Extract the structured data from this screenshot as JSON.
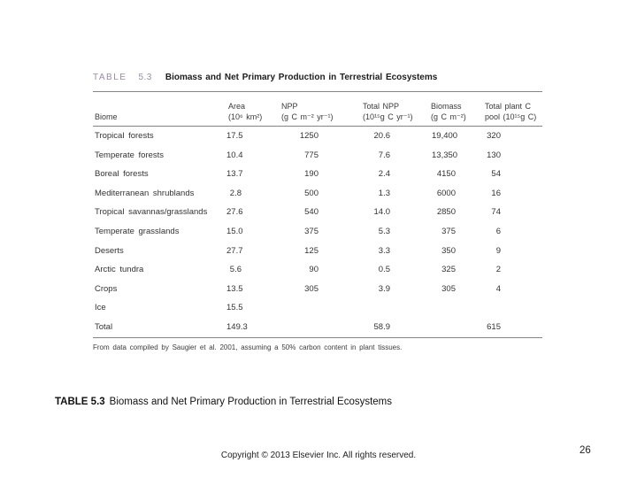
{
  "figure": {
    "label": "TABLE",
    "number": "5.3",
    "title": "Biomass and Net Primary Production in Terrestrial Ecosystems",
    "footnote": "From data compiled by Saugier et al. 2001, assuming a 50% carbon content in plant tissues.",
    "accent_color": "#9a8bb0",
    "rule_color": "#858585"
  },
  "chart_data": {
    "type": "table",
    "title": "TABLE 5.3 Biomass and Net Primary Production in Terrestrial Ecosystems",
    "columns": [
      {
        "name": "Biome",
        "unit": ""
      },
      {
        "name": "Area",
        "unit": "(10⁶ km²)"
      },
      {
        "name": "NPP",
        "unit": "(g C m⁻² yr⁻¹)"
      },
      {
        "name": "Total NPP",
        "unit": "(10¹⁵g C yr⁻¹)"
      },
      {
        "name": "Biomass",
        "unit": "(g C m⁻²)"
      },
      {
        "name": "Total plant C",
        "unit": "pool (10¹⁵g C)"
      }
    ],
    "rows": [
      [
        "Tropical forests",
        "17.5",
        "1250",
        "20.6",
        "19,400",
        "320"
      ],
      [
        "Temperate forests",
        "10.4",
        "775",
        "7.6",
        "13,350",
        "130"
      ],
      [
        "Boreal forests",
        "13.7",
        "190",
        "2.4",
        "4150",
        "54"
      ],
      [
        "Mediterranean shrublands",
        "2.8",
        "500",
        "1.3",
        "6000",
        "16"
      ],
      [
        "Tropical savannas/grasslands",
        "27.6",
        "540",
        "14.0",
        "2850",
        "74"
      ],
      [
        "Temperate grasslands",
        "15.0",
        "375",
        "5.3",
        "375",
        "6"
      ],
      [
        "Deserts",
        "27.7",
        "125",
        "3.3",
        "350",
        "9"
      ],
      [
        "Arctic tundra",
        "5.6",
        "90",
        "0.5",
        "325",
        "2"
      ],
      [
        "Crops",
        "13.5",
        "305",
        "3.9",
        "305",
        "4"
      ],
      [
        "Ice",
        "15.5",
        "",
        "",
        "",
        ""
      ],
      [
        "Total",
        "149.3",
        "",
        "58.9",
        "",
        "615"
      ]
    ]
  },
  "caption": {
    "label": "TABLE 5.3",
    "text": "Biomass and Net Primary Production in Terrestrial Ecosystems"
  },
  "footer": {
    "copyright": "Copyright © 2013 Elsevier Inc. All rights reserved.",
    "page_number": "26"
  }
}
